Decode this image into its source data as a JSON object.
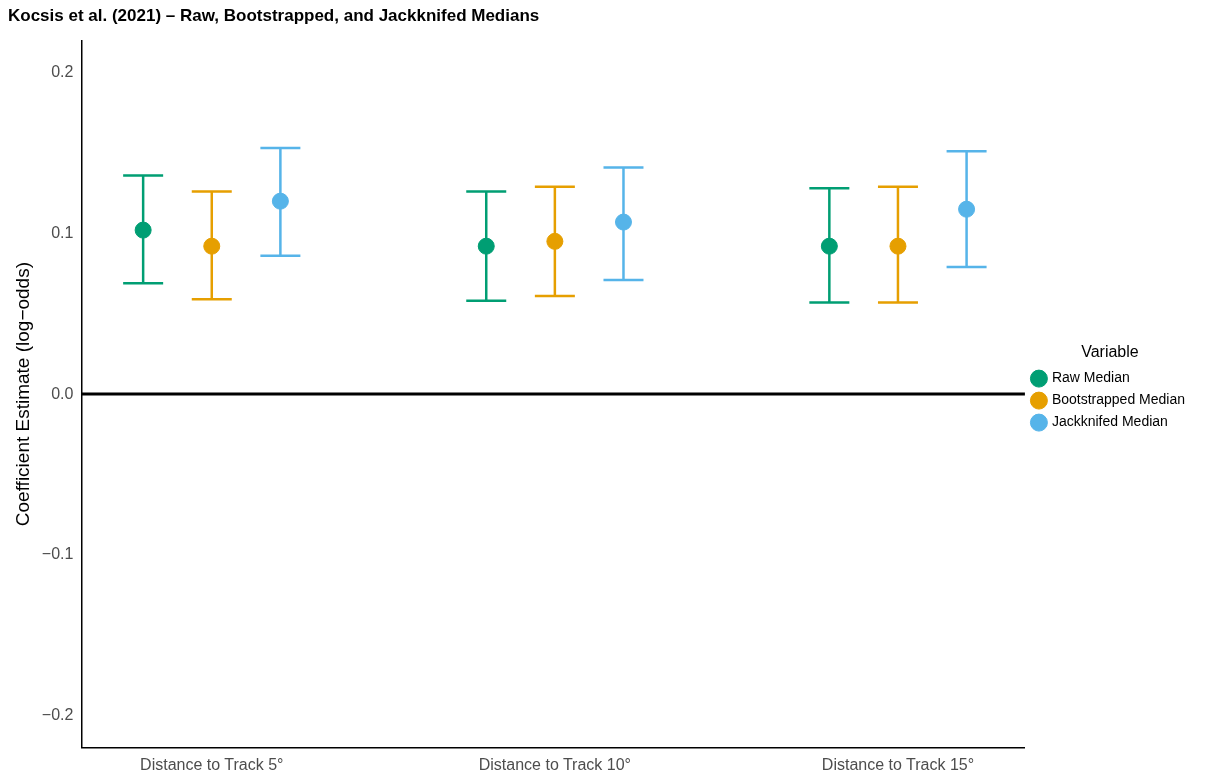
{
  "chart_data": {
    "type": "scatter",
    "title": "Kocsis et al. (2021) – Raw, Bootstrapped, and Jackknifed Medians",
    "ylabel": "Coefficient Estimate (log−odds)",
    "legend_title": "Variable",
    "categories": [
      "Distance to Track 5°",
      "Distance to Track 10°",
      "Distance to Track 15°"
    ],
    "series": [
      {
        "name": "Raw Median",
        "color": "#009e73",
        "values": [
          0.102,
          0.092,
          0.092
        ],
        "errors": [
          [
            0.069,
            0.136
          ],
          [
            0.058,
            0.126
          ],
          [
            0.057,
            0.128
          ]
        ]
      },
      {
        "name": "Bootstrapped Median",
        "color": "#e69f00",
        "values": [
          0.092,
          0.095,
          0.092
        ],
        "errors": [
          [
            0.059,
            0.126
          ],
          [
            0.061,
            0.129
          ],
          [
            0.057,
            0.129
          ]
        ]
      },
      {
        "name": "Jackknifed Median",
        "color": "#56b4e9",
        "values": [
          0.12,
          0.107,
          0.115
        ],
        "errors": [
          [
            0.086,
            0.153
          ],
          [
            0.071,
            0.141
          ],
          [
            0.079,
            0.151
          ]
        ]
      }
    ],
    "ylim": [
      -0.22,
      0.22
    ],
    "yticks": [
      {
        "value": -0.2,
        "label": "−0.2"
      },
      {
        "value": -0.1,
        "label": "−0.1"
      },
      {
        "value": 0,
        "label": "0.0"
      },
      0.1,
      0.2
    ],
    "ref_lines": [
      {
        "axis": "y",
        "value": 0,
        "color": "#000000"
      }
    ],
    "grid": false,
    "legend": "right",
    "marker": "circle"
  }
}
